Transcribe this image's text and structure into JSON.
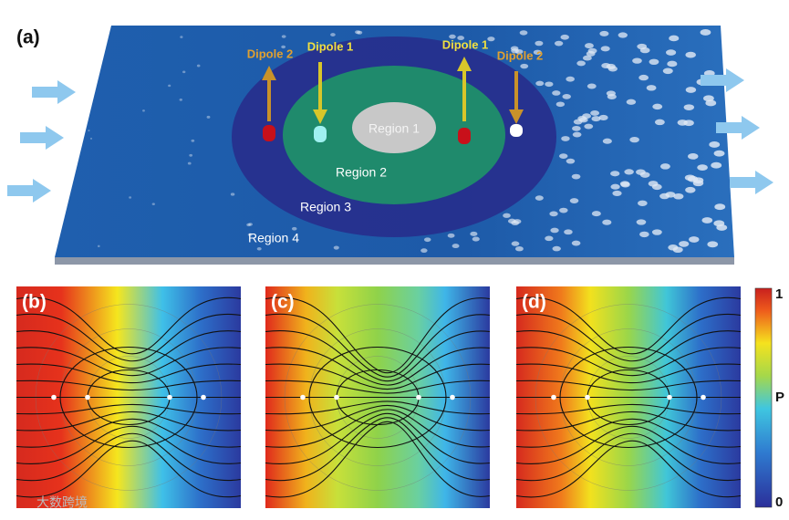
{
  "panel_a": {
    "label": "(a)",
    "dipoles": [
      "Dipole 2",
      "Dipole 1",
      "Dipole 1",
      "Dipole 2"
    ],
    "regions": [
      "Region 1",
      "Region 2",
      "Region 3",
      "Region 4"
    ]
  },
  "panels": [
    {
      "label": "(b)"
    },
    {
      "label": "(c)"
    },
    {
      "label": "(d)"
    }
  ],
  "colorbar": {
    "top": "1",
    "middle": "P",
    "bottom": "0"
  },
  "watermark": "大数跨境"
}
